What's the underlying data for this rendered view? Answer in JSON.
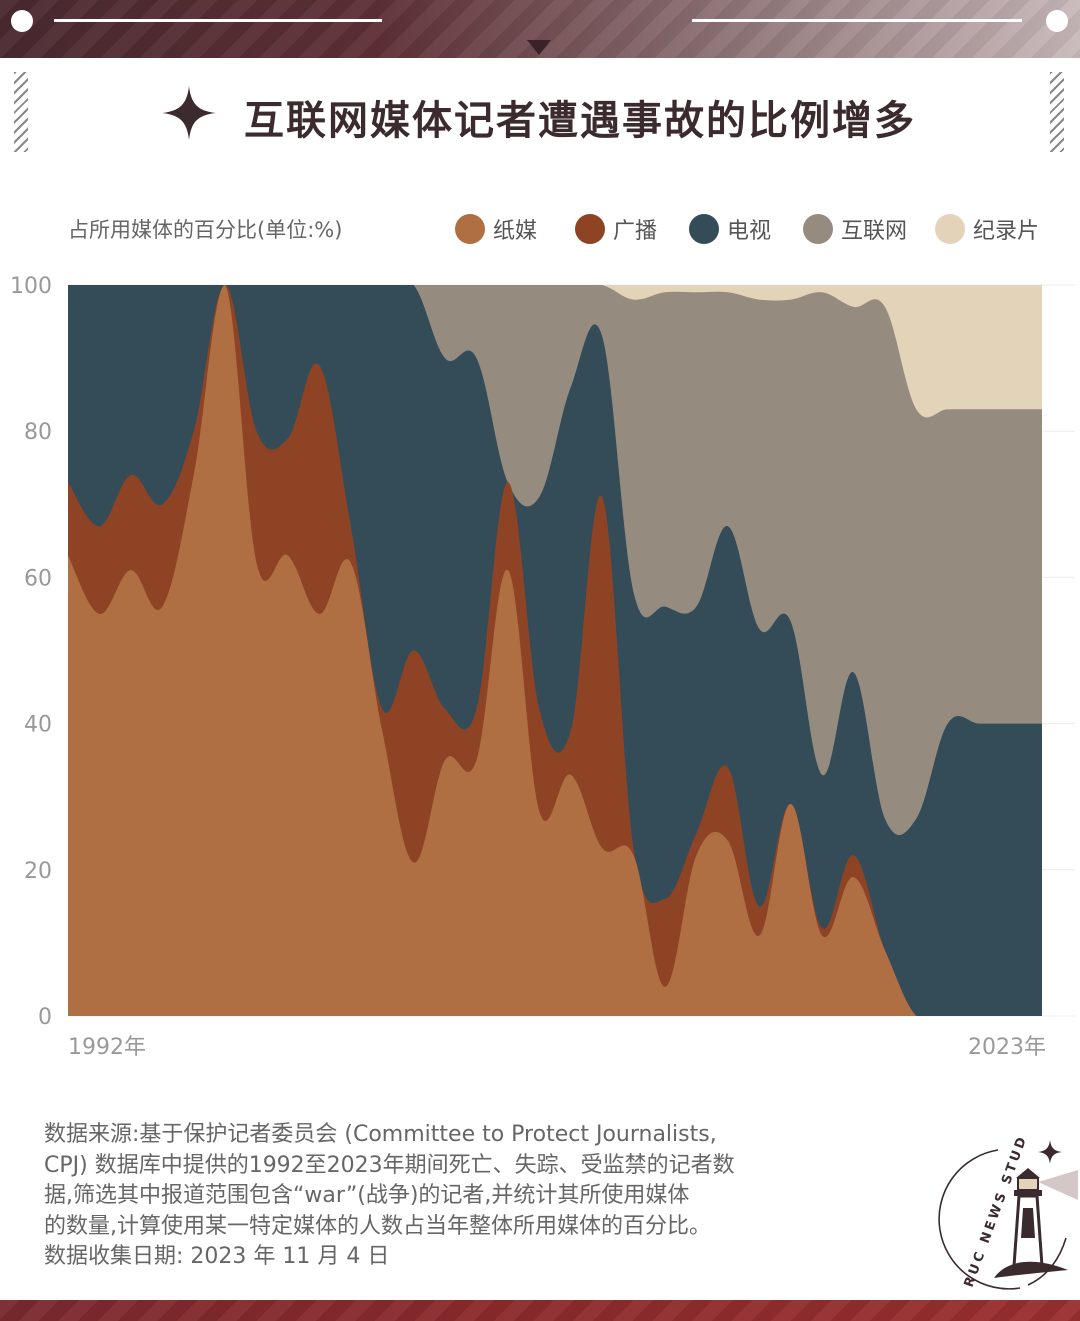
{
  "title": "互联网媒体记者遭遇事故的比例增多",
  "colors": {
    "print": "#b06e43",
    "radio": "#8e4424",
    "tv": "#344b58",
    "internet": "#958c7f",
    "documentary": "#e3d3b8"
  },
  "chart_data": {
    "type": "area",
    "stacked": true,
    "ylabel": "占所用媒体的百分比(单位:%)",
    "ylim": [
      0,
      100
    ],
    "yticks": [
      0,
      20,
      40,
      60,
      80,
      100
    ],
    "x_tick_labels": [
      "1992年",
      "2023年"
    ],
    "x": [
      1992,
      1993,
      1994,
      1995,
      1996,
      1997,
      1998,
      1999,
      2000,
      2001,
      2002,
      2003,
      2004,
      2005,
      2006,
      2007,
      2008,
      2009,
      2010,
      2011,
      2012,
      2013,
      2014,
      2015,
      2016,
      2017,
      2018,
      2019,
      2020,
      2021,
      2022,
      2023
    ],
    "legend_position": "top",
    "series": [
      {
        "name": "纸媒",
        "key": "print",
        "values": [
          63,
          55,
          61,
          56,
          74,
          100,
          62,
          63,
          55,
          62,
          39,
          21,
          35,
          35,
          61,
          28,
          33,
          23,
          22,
          4,
          22,
          24,
          11,
          29,
          11,
          19,
          9,
          0,
          0,
          0,
          0,
          0
        ]
      },
      {
        "name": "广播",
        "key": "radio",
        "values": [
          10,
          12,
          13,
          14,
          6,
          0,
          18,
          16,
          34,
          5,
          3,
          29,
          7,
          7,
          12,
          14,
          6,
          48,
          1,
          12,
          3,
          10,
          4,
          0,
          1,
          3,
          0,
          0,
          0,
          0,
          0,
          0
        ]
      },
      {
        "name": "电视",
        "key": "tv",
        "values": [
          27,
          33,
          26,
          30,
          20,
          0,
          20,
          21,
          11,
          33,
          58,
          50,
          48,
          48,
          0,
          29,
          47,
          22,
          35,
          40,
          31,
          33,
          38,
          25,
          21,
          25,
          18,
          27,
          40,
          40,
          40,
          40
        ]
      },
      {
        "name": "互联网",
        "key": "internet",
        "values": [
          0,
          0,
          0,
          0,
          0,
          0,
          0,
          0,
          0,
          0,
          0,
          0,
          10,
          10,
          27,
          29,
          14,
          7,
          40,
          43,
          43,
          32,
          45,
          44,
          66,
          50,
          70,
          56,
          43,
          43,
          43,
          43
        ]
      },
      {
        "name": "纪录片",
        "key": "documentary",
        "values": [
          0,
          0,
          0,
          0,
          0,
          0,
          0,
          0,
          0,
          0,
          0,
          0,
          0,
          0,
          0,
          0,
          0,
          0,
          2,
          1,
          1,
          1,
          2,
          2,
          1,
          3,
          3,
          17,
          17,
          17,
          17,
          17
        ]
      }
    ]
  },
  "source_lines": [
    "数据来源:基于保护记者委员会 (Committee to Protect Journalists,",
    "CPJ) 数据库中提供的1992至2023年期间死亡、失踪、受监禁的记者数",
    "据,筛选其中报道范围包含“war”(战争)的记者,并统计其所使用媒体",
    "的数量,计算使用某一特定媒体的人数占当年整体所用媒体的百分比。",
    "数据收集日期: 2023 年 11 月 4 日"
  ],
  "logo": {
    "text": "RUC NEWS STUDIO",
    "icon": "lighthouse-icon"
  }
}
